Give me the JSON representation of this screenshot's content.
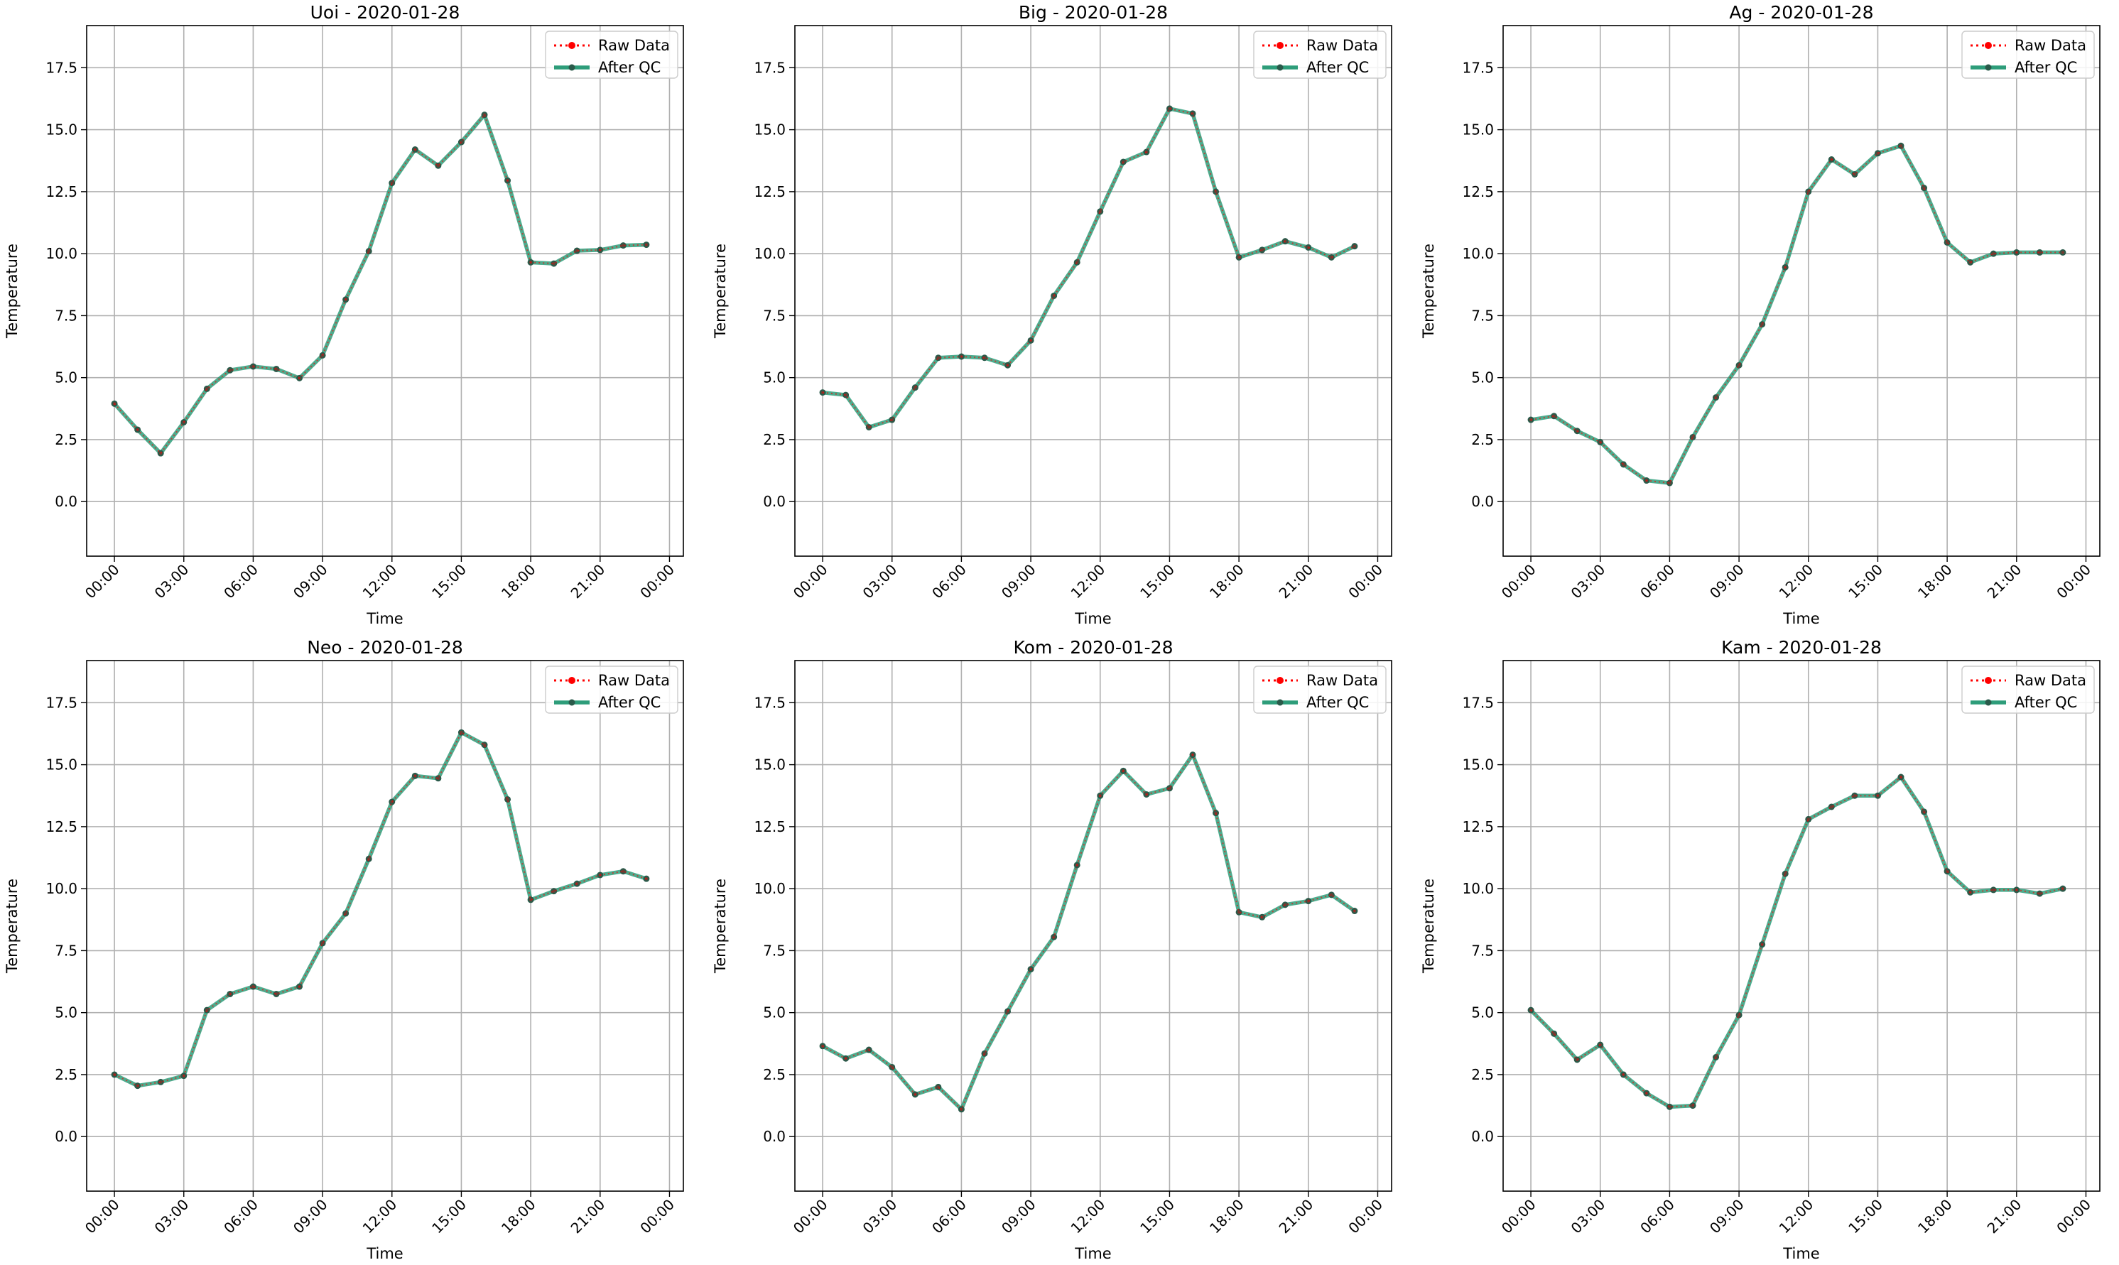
{
  "figure": {
    "panels": [
      {
        "title": "Uoi - 2020-01-28",
        "xlabel": "Time",
        "ylabel": "Temperature"
      },
      {
        "title": "Big - 2020-01-28",
        "xlabel": "Time",
        "ylabel": "Temperature"
      },
      {
        "title": "Ag - 2020-01-28",
        "xlabel": "Time",
        "ylabel": "Temperature"
      },
      {
        "title": "Neo - 2020-01-28",
        "xlabel": "Time",
        "ylabel": "Temperature"
      },
      {
        "title": "Kom - 2020-01-28",
        "xlabel": "Time",
        "ylabel": "Temperature"
      },
      {
        "title": "Kam - 2020-01-28",
        "xlabel": "Time",
        "ylabel": "Temperature"
      }
    ],
    "legend": {
      "raw_label": "Raw Data",
      "qc_label": "After QC"
    }
  },
  "colors": {
    "raw": "#ff0000",
    "qc": "#2e9d7a",
    "marker": "#2a5a4a",
    "grid": "#b0b0b0"
  },
  "chart_data": [
    {
      "type": "line",
      "title": "Uoi - 2020-01-28",
      "xlabel": "Time",
      "ylabel": "Temperature",
      "x": [
        "00:00",
        "01:00",
        "02:00",
        "03:00",
        "04:00",
        "05:00",
        "06:00",
        "07:00",
        "08:00",
        "09:00",
        "10:00",
        "11:00",
        "12:00",
        "13:00",
        "14:00",
        "15:00",
        "16:00",
        "17:00",
        "18:00",
        "19:00",
        "20:00",
        "21:00",
        "22:00",
        "23:00"
      ],
      "x_ticks": [
        "00:00",
        "03:00",
        "06:00",
        "09:00",
        "12:00",
        "15:00",
        "18:00",
        "21:00",
        "00:00"
      ],
      "ylim": [
        -2.2,
        19.2
      ],
      "y_ticks": [
        "0.0",
        "2.5",
        "5.0",
        "7.5",
        "10.0",
        "12.5",
        "15.0",
        "17.5"
      ],
      "grid": true,
      "legend_position": "top-right",
      "series": [
        {
          "name": "Raw Data",
          "style": "dotted",
          "values": [
            3.95,
            2.9,
            1.95,
            3.2,
            4.55,
            5.3,
            5.45,
            5.35,
            4.98,
            5.9,
            8.15,
            10.1,
            12.85,
            14.2,
            13.55,
            14.5,
            15.6,
            12.95,
            9.65,
            9.6,
            10.12,
            10.15,
            10.33,
            10.36
          ]
        },
        {
          "name": "After QC",
          "style": "solid",
          "values": [
            3.95,
            2.9,
            1.95,
            3.2,
            4.55,
            5.3,
            5.45,
            5.35,
            4.98,
            5.9,
            8.15,
            10.1,
            12.85,
            14.2,
            13.55,
            14.5,
            15.6,
            12.95,
            9.65,
            9.6,
            10.12,
            10.15,
            10.33,
            10.36
          ]
        }
      ]
    },
    {
      "type": "line",
      "title": "Big - 2020-01-28",
      "xlabel": "Time",
      "ylabel": "Temperature",
      "x": [
        "00:00",
        "01:00",
        "02:00",
        "03:00",
        "04:00",
        "05:00",
        "06:00",
        "07:00",
        "08:00",
        "09:00",
        "10:00",
        "11:00",
        "12:00",
        "13:00",
        "14:00",
        "15:00",
        "16:00",
        "17:00",
        "18:00",
        "19:00",
        "20:00",
        "21:00",
        "22:00",
        "23:00"
      ],
      "x_ticks": [
        "00:00",
        "03:00",
        "06:00",
        "09:00",
        "12:00",
        "15:00",
        "18:00",
        "21:00",
        "00:00"
      ],
      "ylim": [
        -2.2,
        19.2
      ],
      "y_ticks": [
        "0.0",
        "2.5",
        "5.0",
        "7.5",
        "10.0",
        "12.5",
        "15.0",
        "17.5"
      ],
      "grid": true,
      "legend_position": "top-right",
      "series": [
        {
          "name": "Raw Data",
          "style": "dotted",
          "values": [
            4.4,
            4.3,
            3.0,
            3.3,
            4.6,
            5.8,
            5.85,
            5.8,
            5.5,
            6.5,
            8.3,
            9.65,
            11.7,
            13.7,
            14.1,
            15.85,
            15.65,
            12.5,
            9.85,
            10.15,
            10.5,
            10.25,
            9.85,
            10.3
          ]
        },
        {
          "name": "After QC",
          "style": "solid",
          "values": [
            4.4,
            4.3,
            3.0,
            3.3,
            4.6,
            5.8,
            5.85,
            5.8,
            5.5,
            6.5,
            8.3,
            9.65,
            11.7,
            13.7,
            14.1,
            15.85,
            15.65,
            12.5,
            9.85,
            10.15,
            10.5,
            10.25,
            9.85,
            10.3
          ]
        }
      ]
    },
    {
      "type": "line",
      "title": "Ag - 2020-01-28",
      "xlabel": "Time",
      "ylabel": "Temperature",
      "x": [
        "00:00",
        "01:00",
        "02:00",
        "03:00",
        "04:00",
        "05:00",
        "06:00",
        "07:00",
        "08:00",
        "09:00",
        "10:00",
        "11:00",
        "12:00",
        "13:00",
        "14:00",
        "15:00",
        "16:00",
        "17:00",
        "18:00",
        "19:00",
        "20:00",
        "21:00",
        "22:00",
        "23:00"
      ],
      "x_ticks": [
        "00:00",
        "03:00",
        "06:00",
        "09:00",
        "12:00",
        "15:00",
        "18:00",
        "21:00",
        "00:00"
      ],
      "ylim": [
        -2.2,
        19.2
      ],
      "y_ticks": [
        "0.0",
        "2.5",
        "5.0",
        "7.5",
        "10.0",
        "12.5",
        "15.0",
        "17.5"
      ],
      "grid": true,
      "legend_position": "top-right",
      "series": [
        {
          "name": "Raw Data",
          "style": "dotted",
          "values": [
            3.3,
            3.45,
            2.85,
            2.4,
            1.5,
            0.85,
            0.75,
            2.6,
            4.2,
            5.5,
            7.15,
            9.45,
            12.5,
            13.8,
            13.2,
            14.05,
            14.35,
            12.65,
            10.45,
            9.65,
            10.0,
            10.05,
            10.05,
            10.05
          ]
        },
        {
          "name": "After QC",
          "style": "solid",
          "values": [
            3.3,
            3.45,
            2.85,
            2.4,
            1.5,
            0.85,
            0.75,
            2.6,
            4.2,
            5.5,
            7.15,
            9.45,
            12.5,
            13.8,
            13.2,
            14.05,
            14.35,
            12.65,
            10.45,
            9.65,
            10.0,
            10.05,
            10.05,
            10.05
          ]
        }
      ]
    },
    {
      "type": "line",
      "title": "Neo - 2020-01-28",
      "xlabel": "Time",
      "ylabel": "Temperature",
      "x": [
        "00:00",
        "01:00",
        "02:00",
        "03:00",
        "04:00",
        "05:00",
        "06:00",
        "07:00",
        "08:00",
        "09:00",
        "10:00",
        "11:00",
        "12:00",
        "13:00",
        "14:00",
        "15:00",
        "16:00",
        "17:00",
        "18:00",
        "19:00",
        "20:00",
        "21:00",
        "22:00",
        "23:00"
      ],
      "x_ticks": [
        "00:00",
        "03:00",
        "06:00",
        "09:00",
        "12:00",
        "15:00",
        "18:00",
        "21:00",
        "00:00"
      ],
      "ylim": [
        -2.2,
        19.2
      ],
      "y_ticks": [
        "0.0",
        "2.5",
        "5.0",
        "7.5",
        "10.0",
        "12.5",
        "15.0",
        "17.5"
      ],
      "grid": true,
      "legend_position": "top-right",
      "series": [
        {
          "name": "Raw Data",
          "style": "dotted",
          "values": [
            2.5,
            2.05,
            2.2,
            2.45,
            5.1,
            5.75,
            6.05,
            5.75,
            6.05,
            7.8,
            9.0,
            11.2,
            13.5,
            14.55,
            14.45,
            16.3,
            15.8,
            13.6,
            9.55,
            9.9,
            10.2,
            10.55,
            10.7,
            10.4
          ]
        },
        {
          "name": "After QC",
          "style": "solid",
          "values": [
            2.5,
            2.05,
            2.2,
            2.45,
            5.1,
            5.75,
            6.05,
            5.75,
            6.05,
            7.8,
            9.0,
            11.2,
            13.5,
            14.55,
            14.45,
            16.3,
            15.8,
            13.6,
            9.55,
            9.9,
            10.2,
            10.55,
            10.7,
            10.4
          ]
        }
      ]
    },
    {
      "type": "line",
      "title": "Kom - 2020-01-28",
      "xlabel": "Time",
      "ylabel": "Temperature",
      "x": [
        "00:00",
        "01:00",
        "02:00",
        "03:00",
        "04:00",
        "05:00",
        "06:00",
        "07:00",
        "08:00",
        "09:00",
        "10:00",
        "11:00",
        "12:00",
        "13:00",
        "14:00",
        "15:00",
        "16:00",
        "17:00",
        "18:00",
        "19:00",
        "20:00",
        "21:00",
        "22:00",
        "23:00"
      ],
      "x_ticks": [
        "00:00",
        "03:00",
        "06:00",
        "09:00",
        "12:00",
        "15:00",
        "18:00",
        "21:00",
        "00:00"
      ],
      "ylim": [
        -2.2,
        19.2
      ],
      "y_ticks": [
        "0.0",
        "2.5",
        "5.0",
        "7.5",
        "10.0",
        "12.5",
        "15.0",
        "17.5"
      ],
      "grid": true,
      "legend_position": "top-right",
      "series": [
        {
          "name": "Raw Data",
          "style": "dotted",
          "values": [
            3.65,
            3.15,
            3.5,
            2.8,
            1.7,
            2.0,
            1.1,
            3.35,
            5.05,
            6.75,
            8.05,
            10.95,
            13.75,
            14.75,
            13.8,
            14.05,
            15.4,
            13.05,
            9.05,
            8.85,
            9.35,
            9.5,
            9.75,
            9.1
          ]
        },
        {
          "name": "After QC",
          "style": "solid",
          "values": [
            3.65,
            3.15,
            3.5,
            2.8,
            1.7,
            2.0,
            1.1,
            3.35,
            5.05,
            6.75,
            8.05,
            10.95,
            13.75,
            14.75,
            13.8,
            14.05,
            15.4,
            13.05,
            9.05,
            8.85,
            9.35,
            9.5,
            9.75,
            9.1
          ]
        }
      ]
    },
    {
      "type": "line",
      "title": "Kam - 2020-01-28",
      "xlabel": "Time",
      "ylabel": "Temperature",
      "x": [
        "00:00",
        "01:00",
        "02:00",
        "03:00",
        "04:00",
        "05:00",
        "06:00",
        "07:00",
        "08:00",
        "09:00",
        "10:00",
        "11:00",
        "12:00",
        "13:00",
        "14:00",
        "15:00",
        "16:00",
        "17:00",
        "18:00",
        "19:00",
        "20:00",
        "21:00",
        "22:00",
        "23:00"
      ],
      "x_ticks": [
        "00:00",
        "03:00",
        "06:00",
        "09:00",
        "12:00",
        "15:00",
        "18:00",
        "21:00",
        "00:00"
      ],
      "ylim": [
        -2.2,
        19.2
      ],
      "y_ticks": [
        "0.0",
        "2.5",
        "5.0",
        "7.5",
        "10.0",
        "12.5",
        "15.0",
        "17.5"
      ],
      "grid": true,
      "legend_position": "top-right",
      "series": [
        {
          "name": "Raw Data",
          "style": "dotted",
          "values": [
            5.1,
            4.15,
            3.1,
            3.7,
            2.5,
            1.75,
            1.2,
            1.25,
            3.2,
            4.9,
            7.75,
            10.6,
            12.8,
            13.3,
            13.75,
            13.75,
            14.5,
            13.1,
            10.7,
            9.85,
            9.95,
            9.95,
            9.8,
            10.0
          ]
        },
        {
          "name": "After QC",
          "style": "solid",
          "values": [
            5.1,
            4.15,
            3.1,
            3.7,
            2.5,
            1.75,
            1.2,
            1.25,
            3.2,
            4.9,
            7.75,
            10.6,
            12.8,
            13.3,
            13.75,
            13.75,
            14.5,
            13.1,
            10.7,
            9.85,
            9.95,
            9.95,
            9.8,
            10.0
          ]
        }
      ]
    }
  ]
}
